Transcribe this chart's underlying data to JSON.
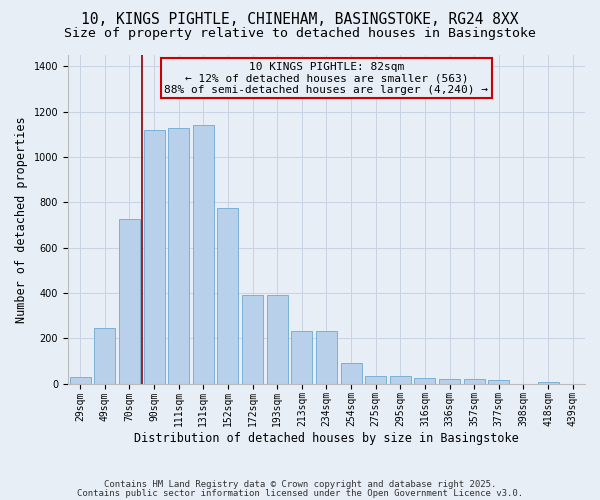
{
  "title_line1": "10, KINGS PIGHTLE, CHINEHAM, BASINGSTOKE, RG24 8XX",
  "title_line2": "Size of property relative to detached houses in Basingstoke",
  "xlabel": "Distribution of detached houses by size in Basingstoke",
  "ylabel": "Number of detached properties",
  "categories": [
    "29sqm",
    "49sqm",
    "70sqm",
    "90sqm",
    "111sqm",
    "131sqm",
    "152sqm",
    "172sqm",
    "193sqm",
    "213sqm",
    "234sqm",
    "254sqm",
    "275sqm",
    "295sqm",
    "316sqm",
    "336sqm",
    "357sqm",
    "377sqm",
    "398sqm",
    "418sqm",
    "439sqm"
  ],
  "values": [
    28,
    245,
    725,
    1120,
    1130,
    1140,
    775,
    390,
    390,
    230,
    230,
    90,
    32,
    32,
    24,
    20,
    18,
    15,
    0,
    8,
    0
  ],
  "bar_color": "#b8d0ea",
  "bar_edge_color": "#6aaad4",
  "grid_color": "#c8d4e4",
  "bg_color": "#e8eef6",
  "vline_color": "#8b0000",
  "annotation_text": "10 KINGS PIGHTLE: 82sqm\n← 12% of detached houses are smaller (563)\n88% of semi-detached houses are larger (4,240) →",
  "annotation_box_color": "#cc0000",
  "footer_line1": "Contains HM Land Registry data © Crown copyright and database right 2025.",
  "footer_line2": "Contains public sector information licensed under the Open Government Licence v3.0.",
  "ylim": [
    0,
    1450
  ],
  "yticks": [
    0,
    200,
    400,
    600,
    800,
    1000,
    1200,
    1400
  ],
  "title_fontsize": 10.5,
  "subtitle_fontsize": 9.5,
  "axis_label_fontsize": 8.5,
  "tick_fontsize": 7,
  "footer_fontsize": 6.5,
  "annot_fontsize": 8
}
